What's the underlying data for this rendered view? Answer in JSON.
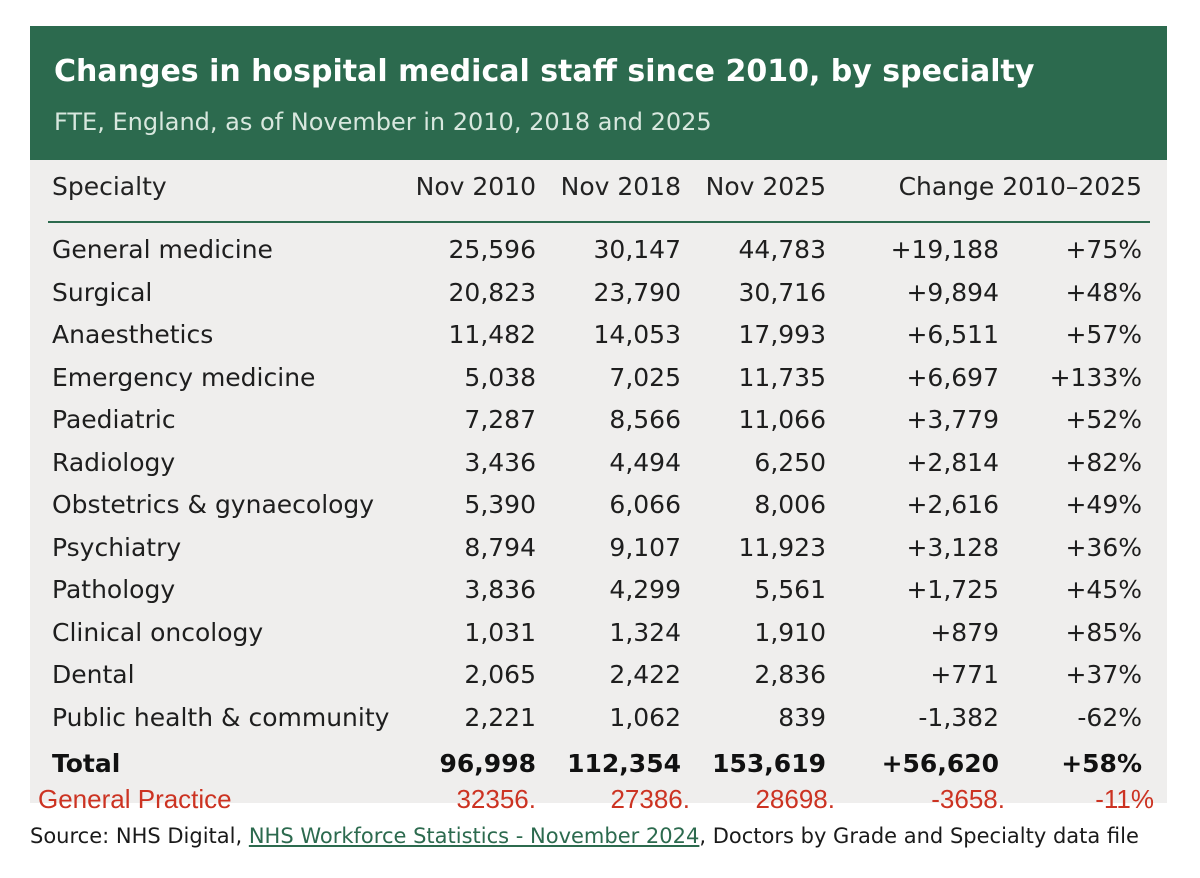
{
  "header": {
    "title": "Changes in hospital medical staff since 2010, by specialty",
    "subtitle": "FTE, England, as of November in 2010, 2018 and 2025"
  },
  "table": {
    "columns": {
      "specialty": "Specialty",
      "nov2010": "Nov 2010",
      "nov2018": "Nov 2018",
      "nov2025": "Nov 2025",
      "change": "Change 2010–2025"
    },
    "rows": [
      {
        "name": "General medicine",
        "v2010": "25,596",
        "v2018": "30,147",
        "v2025": "44,783",
        "change": "+19,188",
        "pct": "+75%"
      },
      {
        "name": "Surgical",
        "v2010": "20,823",
        "v2018": "23,790",
        "v2025": "30,716",
        "change": "+9,894",
        "pct": "+48%"
      },
      {
        "name": "Anaesthetics",
        "v2010": "11,482",
        "v2018": "14,053",
        "v2025": "17,993",
        "change": "+6,511",
        "pct": "+57%"
      },
      {
        "name": "Emergency medicine",
        "v2010": "5,038",
        "v2018": "7,025",
        "v2025": "11,735",
        "change": "+6,697",
        "pct": "+133%"
      },
      {
        "name": "Paediatric",
        "v2010": "7,287",
        "v2018": "8,566",
        "v2025": "11,066",
        "change": "+3,779",
        "pct": "+52%"
      },
      {
        "name": "Radiology",
        "v2010": "3,436",
        "v2018": "4,494",
        "v2025": "6,250",
        "change": "+2,814",
        "pct": "+82%"
      },
      {
        "name": "Obstetrics & gynaecology",
        "v2010": "5,390",
        "v2018": "6,066",
        "v2025": "8,006",
        "change": "+2,616",
        "pct": "+49%"
      },
      {
        "name": "Psychiatry",
        "v2010": "8,794",
        "v2018": "9,107",
        "v2025": "11,923",
        "change": "+3,128",
        "pct": "+36%"
      },
      {
        "name": "Pathology",
        "v2010": "3,836",
        "v2018": "4,299",
        "v2025": "5,561",
        "change": "+1,725",
        "pct": "+45%"
      },
      {
        "name": "Clinical oncology",
        "v2010": "1,031",
        "v2018": "1,324",
        "v2025": "1,910",
        "change": "+879",
        "pct": "+85%"
      },
      {
        "name": "Dental",
        "v2010": "2,065",
        "v2018": "2,422",
        "v2025": "2,836",
        "change": "+771",
        "pct": "+37%"
      },
      {
        "name": "Public health & community",
        "v2010": "2,221",
        "v2018": "1,062",
        "v2025": "839",
        "change": "-1,382",
        "pct": "-62%"
      }
    ],
    "total": {
      "name": "Total",
      "v2010": "96,998",
      "v2018": "112,354",
      "v2025": "153,619",
      "change": "+56,620",
      "pct": "+58%"
    },
    "general_practice": {
      "name": "General Practice",
      "v2010": "32356.",
      "v2018": "27386.",
      "v2025": "28698.",
      "change": "-3658.",
      "pct": "-11%"
    }
  },
  "source": {
    "prefix": "Source: NHS Digital, ",
    "link_text": "NHS Workforce Statistics - November 2024",
    "suffix": ", Doctors by Grade and Specialty data file"
  },
  "colors": {
    "header_bg": "#2c6a4e",
    "panel_bg": "#efeeed",
    "annotation_red": "#cc3322"
  }
}
